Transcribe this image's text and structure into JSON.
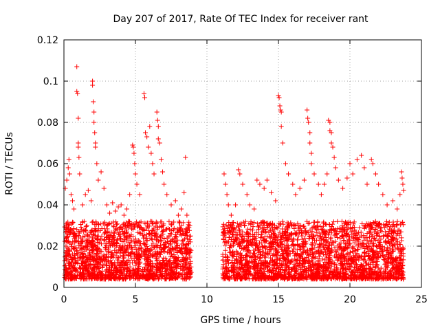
{
  "chart_data": {
    "type": "scatter",
    "title": "Day 207 of 2017, Rate Of TEC Index for receiver rant",
    "xlabel": "GPS time / hours",
    "ylabel": "ROTI / TECUs",
    "xlim": [
      0,
      25
    ],
    "ylim": [
      0,
      0.12
    ],
    "xticks": [
      0,
      5,
      10,
      15,
      20,
      25
    ],
    "xtick_labels": [
      "0",
      "5",
      "10",
      "15",
      "20",
      "25"
    ],
    "yticks": [
      0,
      0.02,
      0.04,
      0.06,
      0.08,
      0.1,
      0.12
    ],
    "ytick_labels": [
      "0",
      "0.02",
      "0.04",
      "0.06",
      "0.08",
      "0.1",
      "0.12"
    ],
    "grid": true,
    "marker": "plus",
    "color": "#ff0000",
    "data_gap_hours": [
      8.9,
      11.1
    ],
    "series": [
      {
        "points": [
          [
            0.1,
            0.048
          ],
          [
            0.2,
            0.052
          ],
          [
            0.3,
            0.058
          ],
          [
            0.35,
            0.062
          ],
          [
            0.4,
            0.055
          ],
          [
            0.5,
            0.045
          ],
          [
            0.6,
            0.042
          ],
          [
            0.7,
            0.038
          ],
          [
            0.9,
            0.107
          ],
          [
            0.9,
            0.095
          ],
          [
            0.95,
            0.094
          ],
          [
            1.0,
            0.082
          ],
          [
            1.0,
            0.07
          ],
          [
            1.0,
            0.068
          ],
          [
            1.05,
            0.063
          ],
          [
            1.1,
            0.055
          ],
          [
            1.3,
            0.04
          ],
          [
            1.5,
            0.045
          ],
          [
            1.7,
            0.047
          ],
          [
            1.9,
            0.042
          ],
          [
            2.0,
            0.1
          ],
          [
            2.0,
            0.098
          ],
          [
            2.05,
            0.09
          ],
          [
            2.1,
            0.085
          ],
          [
            2.1,
            0.08
          ],
          [
            2.15,
            0.075
          ],
          [
            2.2,
            0.07
          ],
          [
            2.2,
            0.068
          ],
          [
            2.3,
            0.06
          ],
          [
            2.4,
            0.052
          ],
          [
            2.6,
            0.056
          ],
          [
            2.8,
            0.048
          ],
          [
            3.0,
            0.04
          ],
          [
            3.2,
            0.036
          ],
          [
            3.4,
            0.041
          ],
          [
            3.6,
            0.037
          ],
          [
            3.8,
            0.039
          ],
          [
            4.0,
            0.04
          ],
          [
            4.2,
            0.035
          ],
          [
            4.4,
            0.038
          ],
          [
            4.6,
            0.045
          ],
          [
            4.8,
            0.069
          ],
          [
            4.85,
            0.068
          ],
          [
            4.9,
            0.065
          ],
          [
            4.95,
            0.06
          ],
          [
            5.0,
            0.055
          ],
          [
            5.1,
            0.05
          ],
          [
            5.3,
            0.045
          ],
          [
            5.6,
            0.094
          ],
          [
            5.65,
            0.092
          ],
          [
            5.7,
            0.075
          ],
          [
            5.8,
            0.073
          ],
          [
            5.9,
            0.068
          ],
          [
            6.0,
            0.078
          ],
          [
            6.1,
            0.065
          ],
          [
            6.2,
            0.06
          ],
          [
            6.3,
            0.055
          ],
          [
            6.5,
            0.085
          ],
          [
            6.55,
            0.081
          ],
          [
            6.6,
            0.078
          ],
          [
            6.6,
            0.072
          ],
          [
            6.7,
            0.07
          ],
          [
            6.8,
            0.062
          ],
          [
            6.9,
            0.056
          ],
          [
            7.0,
            0.05
          ],
          [
            7.2,
            0.045
          ],
          [
            7.5,
            0.04
          ],
          [
            7.8,
            0.042
          ],
          [
            8.0,
            0.035
          ],
          [
            8.2,
            0.038
          ],
          [
            8.4,
            0.046
          ],
          [
            8.5,
            0.063
          ],
          [
            8.6,
            0.035
          ],
          [
            8.8,
            0.03
          ],
          [
            11.2,
            0.055
          ],
          [
            11.3,
            0.05
          ],
          [
            11.4,
            0.045
          ],
          [
            11.5,
            0.04
          ],
          [
            11.7,
            0.035
          ],
          [
            12.0,
            0.04
          ],
          [
            12.2,
            0.057
          ],
          [
            12.3,
            0.055
          ],
          [
            12.5,
            0.05
          ],
          [
            12.8,
            0.045
          ],
          [
            13.0,
            0.04
          ],
          [
            13.3,
            0.038
          ],
          [
            13.5,
            0.052
          ],
          [
            13.7,
            0.05
          ],
          [
            14.0,
            0.048
          ],
          [
            14.2,
            0.052
          ],
          [
            14.5,
            0.046
          ],
          [
            14.8,
            0.042
          ],
          [
            15.0,
            0.093
          ],
          [
            15.05,
            0.092
          ],
          [
            15.1,
            0.088
          ],
          [
            15.15,
            0.086
          ],
          [
            15.2,
            0.085
          ],
          [
            15.2,
            0.078
          ],
          [
            15.3,
            0.07
          ],
          [
            15.5,
            0.06
          ],
          [
            15.7,
            0.055
          ],
          [
            16.0,
            0.05
          ],
          [
            16.2,
            0.045
          ],
          [
            16.5,
            0.048
          ],
          [
            16.8,
            0.052
          ],
          [
            17.0,
            0.086
          ],
          [
            17.05,
            0.082
          ],
          [
            17.1,
            0.08
          ],
          [
            17.2,
            0.075
          ],
          [
            17.2,
            0.07
          ],
          [
            17.3,
            0.065
          ],
          [
            17.3,
            0.06
          ],
          [
            17.5,
            0.055
          ],
          [
            17.8,
            0.05
          ],
          [
            18.0,
            0.045
          ],
          [
            18.2,
            0.05
          ],
          [
            18.4,
            0.055
          ],
          [
            18.5,
            0.081
          ],
          [
            18.6,
            0.08
          ],
          [
            18.6,
            0.076
          ],
          [
            18.7,
            0.075
          ],
          [
            18.7,
            0.07
          ],
          [
            18.8,
            0.068
          ],
          [
            18.9,
            0.063
          ],
          [
            19.0,
            0.058
          ],
          [
            19.2,
            0.052
          ],
          [
            19.5,
            0.048
          ],
          [
            19.8,
            0.053
          ],
          [
            20.0,
            0.06
          ],
          [
            20.2,
            0.055
          ],
          [
            20.5,
            0.062
          ],
          [
            20.8,
            0.064
          ],
          [
            21.0,
            0.058
          ],
          [
            21.2,
            0.05
          ],
          [
            21.5,
            0.062
          ],
          [
            21.6,
            0.06
          ],
          [
            21.8,
            0.055
          ],
          [
            22.0,
            0.05
          ],
          [
            22.3,
            0.045
          ],
          [
            22.6,
            0.04
          ],
          [
            23.0,
            0.042
          ],
          [
            23.3,
            0.038
          ],
          [
            23.5,
            0.045
          ],
          [
            23.6,
            0.056
          ],
          [
            23.65,
            0.053
          ],
          [
            23.7,
            0.05
          ],
          [
            23.75,
            0.047
          ]
        ]
      }
    ]
  }
}
